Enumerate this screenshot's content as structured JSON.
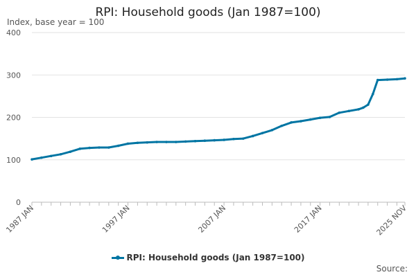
{
  "chart_data": {
    "type": "line",
    "title": "RPI: Household goods (Jan 1987=100)",
    "ylabel": "Index, base year = 100",
    "ylim": [
      0,
      400
    ],
    "yticks": [
      0,
      100,
      200,
      300,
      400
    ],
    "x_range": [
      "1987-01",
      "2025-11"
    ],
    "xtick_labels": [
      "1987 JAN",
      "1997 JAN",
      "2007 JAN",
      "2017 JAN",
      "2025 NOV"
    ],
    "grid": "horizontal",
    "legend_position": "bottom",
    "series": [
      {
        "name": "RPI: Household goods (Jan 1987=100)",
        "color": "#0075a3",
        "x": [
          "1987-01",
          "1988-01",
          "1989-01",
          "1990-01",
          "1991-01",
          "1992-01",
          "1993-01",
          "1994-01",
          "1995-01",
          "1996-01",
          "1997-01",
          "1998-01",
          "1999-01",
          "2000-01",
          "2001-01",
          "2002-01",
          "2003-01",
          "2004-01",
          "2005-01",
          "2006-01",
          "2007-01",
          "2008-01",
          "2009-01",
          "2010-01",
          "2011-01",
          "2012-01",
          "2013-01",
          "2014-01",
          "2015-01",
          "2016-01",
          "2017-01",
          "2018-01",
          "2019-01",
          "2020-01",
          "2021-01",
          "2021-07",
          "2022-01",
          "2022-07",
          "2023-01",
          "2024-01",
          "2025-01",
          "2025-11"
        ],
        "values": [
          101,
          105,
          109,
          113,
          119,
          126,
          128,
          129,
          129,
          133,
          138,
          140,
          141,
          142,
          142,
          142,
          143,
          144,
          145,
          146,
          147,
          149,
          150,
          156,
          163,
          170,
          180,
          188,
          191,
          195,
          199,
          201,
          211,
          215,
          219,
          223,
          230,
          255,
          288,
          289,
          290,
          292
        ]
      }
    ]
  },
  "source_label": "Source:"
}
